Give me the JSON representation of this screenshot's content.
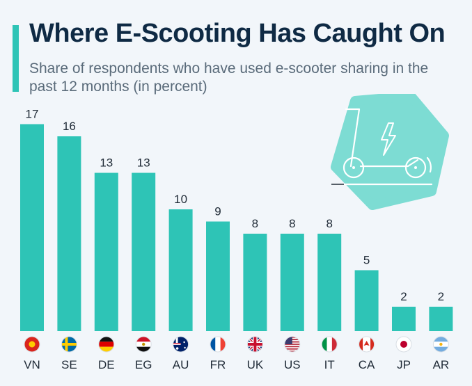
{
  "header": {
    "title": "Where E-Scooting Has Caught On",
    "subtitle": "Share of respondents who have used e-scooter sharing in the past 12 months (in percent)"
  },
  "colors": {
    "bar": "#2ec4b6",
    "title": "#0f2a44",
    "subtitle": "#5a6b7a",
    "label": "#1f2a36",
    "background": "#f2f6fa",
    "illustration": "#7ddcd3"
  },
  "illustration": {
    "icon": "e-scooter-icon"
  },
  "chart_data": {
    "type": "bar",
    "categories": [
      "VN",
      "SE",
      "DE",
      "EG",
      "AU",
      "FR",
      "UK",
      "US",
      "IT",
      "CA",
      "JP",
      "AR"
    ],
    "values": [
      17,
      16,
      13,
      13,
      10,
      9,
      8,
      8,
      8,
      5,
      2,
      2
    ],
    "flags": [
      "flag-vietnam-icon",
      "flag-sweden-icon",
      "flag-germany-icon",
      "flag-egypt-icon",
      "flag-australia-icon",
      "flag-france-icon",
      "flag-uk-icon",
      "flag-us-icon",
      "flag-italy-icon",
      "flag-canada-icon",
      "flag-japan-icon",
      "flag-argentina-icon"
    ],
    "title": "Where E-Scooting Has Caught On",
    "subtitle": "Share of respondents who have used e-scooter sharing in the past 12 months (in percent)",
    "xlabel": "",
    "ylabel": "",
    "ylim": [
      0,
      17
    ],
    "grid": false,
    "data_labels": true
  }
}
